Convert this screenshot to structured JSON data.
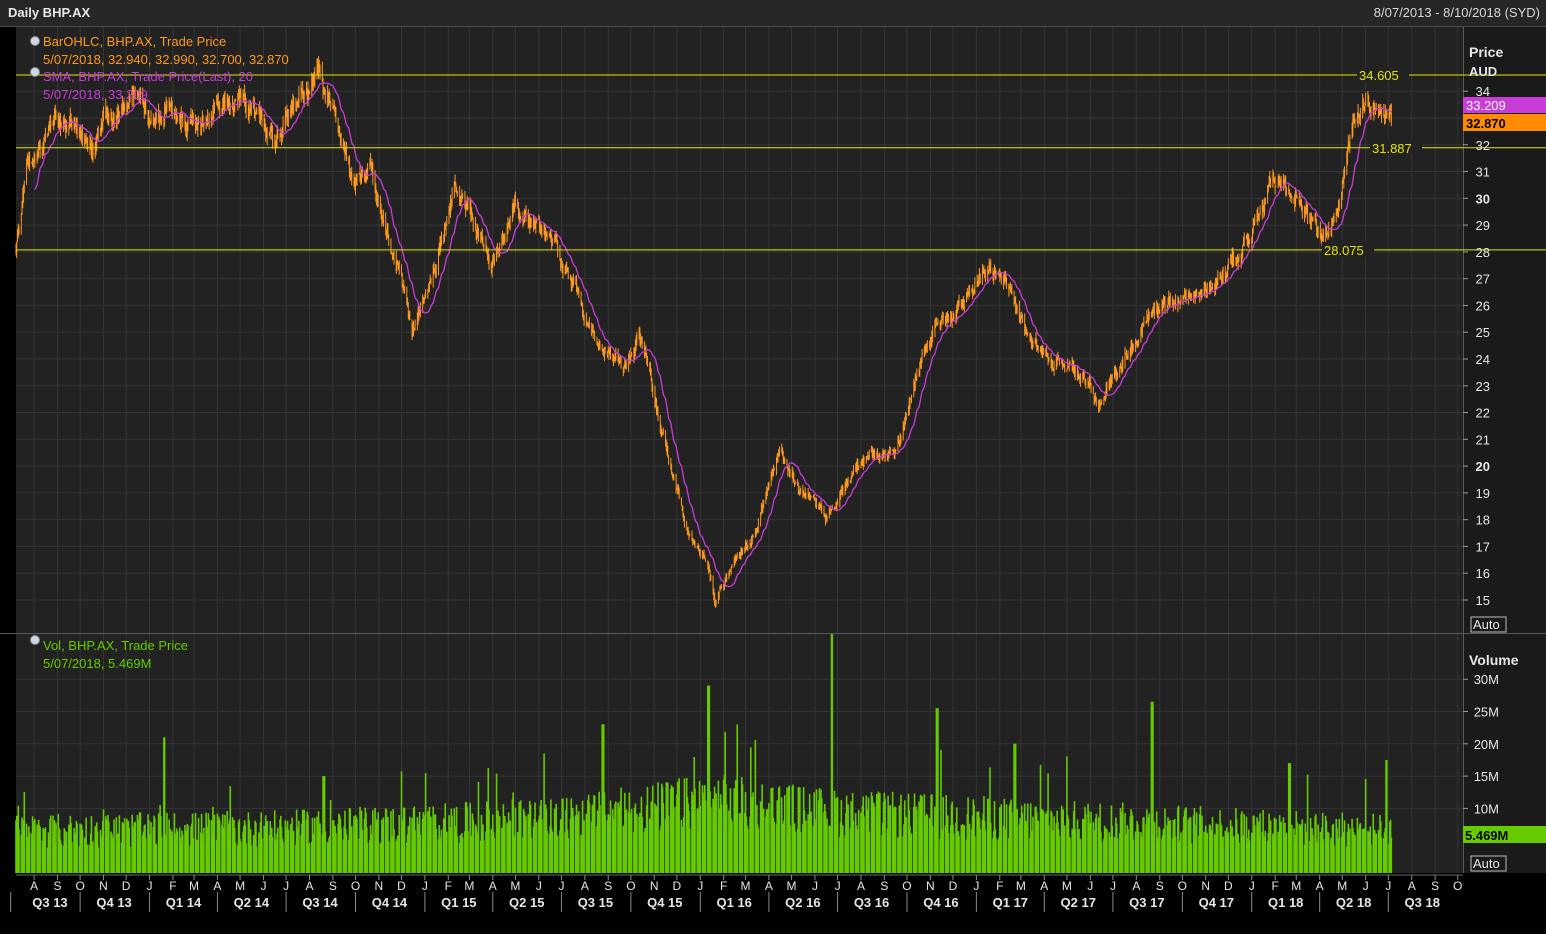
{
  "header": {
    "title": "Daily BHP.AX",
    "date_range": "8/07/2013 - 8/10/2018 (SYD)"
  },
  "colors": {
    "background": "#222222",
    "grid": "#3a3a3a",
    "price_bars": "#ff9a1f",
    "sma": "#c83cd8",
    "volume": "#66cc00",
    "reference_lines": "#e6e600"
  },
  "price_panel": {
    "axis_title": "Price",
    "axis_unit": "AUD",
    "ticks": [
      "15",
      "16",
      "17",
      "18",
      "19",
      "20",
      "21",
      "22",
      "23",
      "24",
      "25",
      "26",
      "27",
      "28",
      "29",
      "30",
      "31",
      "32",
      "33",
      "34"
    ],
    "auto_button": "Auto",
    "legend_ohlc_title": "BarOHLC, BHP.AX, Trade Price",
    "legend_ohlc_values": "5/07/2018, 32.940, 32.990, 32.700, 32.870",
    "legend_sma_title": "SMA, BHP.AX, Trade Price(Last),  20",
    "legend_sma_values": "5/07/2018, 33.209",
    "last_sma_badge": "33.209",
    "last_price_badge": "32.870",
    "hlines": [
      {
        "value": 34.605,
        "label": "34.605"
      },
      {
        "value": 31.887,
        "label": "31.887"
      },
      {
        "value": 28.075,
        "label": "28.075"
      }
    ]
  },
  "volume_panel": {
    "axis_title": "Volume",
    "ticks": [
      "10M",
      "15M",
      "20M",
      "25M",
      "30M"
    ],
    "auto_button": "Auto",
    "legend_title": "Vol, BHP.AX, Trade Price",
    "legend_values": "5/07/2018, 5.469M",
    "last_volume_badge": "5.469M"
  },
  "chart_data": {
    "type": "ohlc_bar_with_sma_and_volume",
    "symbol": "BHP.AX",
    "x_range": [
      "2013-07-08",
      "2018-10-08"
    ],
    "y_range": [
      14.3,
      35.5
    ],
    "y_scale": "linear",
    "volume_range": [
      0,
      37000000
    ],
    "sma_period": 20,
    "price_keypoints": [
      [
        "2013-07-08",
        28.0
      ],
      [
        "2013-07-22",
        30.8
      ],
      [
        "2013-08-20",
        32.5
      ],
      [
        "2013-09-20",
        32.8
      ],
      [
        "2013-10-20",
        31.8
      ],
      [
        "2013-11-05",
        33.3
      ],
      [
        "2013-12-10",
        33.8
      ],
      [
        "2014-01-05",
        33.0
      ],
      [
        "2014-02-10",
        33.5
      ],
      [
        "2014-03-05",
        32.5
      ],
      [
        "2014-04-10",
        33.7
      ],
      [
        "2014-05-15",
        33.6
      ],
      [
        "2014-06-15",
        32.3
      ],
      [
        "2014-07-10",
        33.5
      ],
      [
        "2014-08-12",
        34.7
      ],
      [
        "2014-09-10",
        32.5
      ],
      [
        "2014-09-30",
        30.6
      ],
      [
        "2014-10-20",
        31.2
      ],
      [
        "2014-11-20",
        28.0
      ],
      [
        "2014-12-15",
        25.0
      ],
      [
        "2015-01-05",
        26.5
      ],
      [
        "2015-02-10",
        30.5
      ],
      [
        "2015-03-05",
        29.0
      ],
      [
        "2015-03-30",
        27.5
      ],
      [
        "2015-04-30",
        30.0
      ],
      [
        "2015-05-25",
        29.0
      ],
      [
        "2015-06-20",
        28.5
      ],
      [
        "2015-07-20",
        26.5
      ],
      [
        "2015-08-25",
        24.5
      ],
      [
        "2015-09-20",
        23.5
      ],
      [
        "2015-10-12",
        25.0
      ],
      [
        "2015-11-15",
        21.0
      ],
      [
        "2015-12-15",
        17.5
      ],
      [
        "2016-01-10",
        16.5
      ],
      [
        "2016-01-21",
        14.8
      ],
      [
        "2016-02-15",
        16.5
      ],
      [
        "2016-03-15",
        17.5
      ],
      [
        "2016-04-15",
        20.5
      ],
      [
        "2016-05-15",
        18.8
      ],
      [
        "2016-06-15",
        18.2
      ],
      [
        "2016-07-15",
        19.5
      ],
      [
        "2016-08-15",
        20.5
      ],
      [
        "2016-09-15",
        20.2
      ],
      [
        "2016-10-15",
        23.5
      ],
      [
        "2016-11-10",
        25.5
      ],
      [
        "2016-12-15",
        26.2
      ],
      [
        "2017-01-12",
        27.5
      ],
      [
        "2017-02-15",
        26.5
      ],
      [
        "2017-03-15",
        24.5
      ],
      [
        "2017-04-15",
        24.0
      ],
      [
        "2017-05-15",
        23.5
      ],
      [
        "2017-06-12",
        22.3
      ],
      [
        "2017-07-15",
        24.0
      ],
      [
        "2017-08-15",
        25.5
      ],
      [
        "2017-09-15",
        26.5
      ],
      [
        "2017-10-15",
        26.0
      ],
      [
        "2017-11-15",
        27.0
      ],
      [
        "2017-12-15",
        28.0
      ],
      [
        "2018-01-10",
        29.5
      ],
      [
        "2018-01-30",
        31.0
      ],
      [
        "2018-02-20",
        30.5
      ],
      [
        "2018-03-15",
        29.5
      ],
      [
        "2018-04-03",
        28.3
      ],
      [
        "2018-04-25",
        29.5
      ],
      [
        "2018-05-15",
        33.0
      ],
      [
        "2018-05-28",
        34.0
      ],
      [
        "2018-06-15",
        33.0
      ],
      [
        "2018-07-05",
        32.87
      ]
    ],
    "volume_levels_millions": [
      [
        "2013-07-08",
        7
      ],
      [
        "2014-06-30",
        7.5
      ],
      [
        "2015-06-30",
        9
      ],
      [
        "2016-01-15",
        12
      ],
      [
        "2016-06-30",
        10
      ],
      [
        "2017-06-30",
        8.5
      ],
      [
        "2018-07-05",
        7
      ]
    ],
    "volume_spikes_millions": [
      [
        "2014-01-20",
        21
      ],
      [
        "2014-08-20",
        15
      ],
      [
        "2015-08-25",
        23
      ],
      [
        "2016-01-12",
        29
      ],
      [
        "2016-02-20",
        23
      ],
      [
        "2016-06-24",
        37
      ],
      [
        "2016-11-10",
        25.5
      ],
      [
        "2017-02-21",
        20
      ],
      [
        "2017-08-22",
        26.5
      ],
      [
        "2018-02-20",
        17
      ],
      [
        "2018-06-29",
        17.5
      ]
    ],
    "x_month_labels": [
      {
        "d": "2013-08-01",
        "t": "A"
      },
      {
        "d": "2013-09-01",
        "t": "S"
      },
      {
        "d": "2013-10-01",
        "t": "O"
      },
      {
        "d": "2013-11-01",
        "t": "N"
      },
      {
        "d": "2013-12-01",
        "t": "D"
      },
      {
        "d": "2014-01-01",
        "t": "J"
      },
      {
        "d": "2014-02-01",
        "t": "F"
      },
      {
        "d": "2014-03-01",
        "t": "M"
      },
      {
        "d": "2014-04-01",
        "t": "A"
      },
      {
        "d": "2014-05-01",
        "t": "M"
      },
      {
        "d": "2014-06-01",
        "t": "J"
      },
      {
        "d": "2014-07-01",
        "t": "J"
      },
      {
        "d": "2014-08-01",
        "t": "A"
      },
      {
        "d": "2014-09-01",
        "t": "S"
      },
      {
        "d": "2014-10-01",
        "t": "O"
      },
      {
        "d": "2014-11-01",
        "t": "N"
      },
      {
        "d": "2014-12-01",
        "t": "D"
      },
      {
        "d": "2015-01-01",
        "t": "J"
      },
      {
        "d": "2015-02-01",
        "t": "F"
      },
      {
        "d": "2015-03-01",
        "t": "M"
      },
      {
        "d": "2015-04-01",
        "t": "A"
      },
      {
        "d": "2015-05-01",
        "t": "M"
      },
      {
        "d": "2015-06-01",
        "t": "J"
      },
      {
        "d": "2015-07-01",
        "t": "J"
      },
      {
        "d": "2015-08-01",
        "t": "A"
      },
      {
        "d": "2015-09-01",
        "t": "S"
      },
      {
        "d": "2015-10-01",
        "t": "O"
      },
      {
        "d": "2015-11-01",
        "t": "N"
      },
      {
        "d": "2015-12-01",
        "t": "D"
      },
      {
        "d": "2016-01-01",
        "t": "J"
      },
      {
        "d": "2016-02-01",
        "t": "F"
      },
      {
        "d": "2016-03-01",
        "t": "M"
      },
      {
        "d": "2016-04-01",
        "t": "A"
      },
      {
        "d": "2016-05-01",
        "t": "M"
      },
      {
        "d": "2016-06-01",
        "t": "J"
      },
      {
        "d": "2016-07-01",
        "t": "J"
      },
      {
        "d": "2016-08-01",
        "t": "A"
      },
      {
        "d": "2016-09-01",
        "t": "S"
      },
      {
        "d": "2016-10-01",
        "t": "O"
      },
      {
        "d": "2016-11-01",
        "t": "N"
      },
      {
        "d": "2016-12-01",
        "t": "D"
      },
      {
        "d": "2017-01-01",
        "t": "J"
      },
      {
        "d": "2017-02-01",
        "t": "F"
      },
      {
        "d": "2017-03-01",
        "t": "M"
      },
      {
        "d": "2017-04-01",
        "t": "A"
      },
      {
        "d": "2017-05-01",
        "t": "M"
      },
      {
        "d": "2017-06-01",
        "t": "J"
      },
      {
        "d": "2017-07-01",
        "t": "J"
      },
      {
        "d": "2017-08-01",
        "t": "A"
      },
      {
        "d": "2017-09-01",
        "t": "S"
      },
      {
        "d": "2017-10-01",
        "t": "O"
      },
      {
        "d": "2017-11-01",
        "t": "N"
      },
      {
        "d": "2017-12-01",
        "t": "D"
      },
      {
        "d": "2018-01-01",
        "t": "J"
      },
      {
        "d": "2018-02-01",
        "t": "F"
      },
      {
        "d": "2018-03-01",
        "t": "M"
      },
      {
        "d": "2018-04-01",
        "t": "A"
      },
      {
        "d": "2018-05-01",
        "t": "M"
      },
      {
        "d": "2018-06-01",
        "t": "J"
      },
      {
        "d": "2018-07-01",
        "t": "J"
      },
      {
        "d": "2018-08-01",
        "t": "A"
      },
      {
        "d": "2018-09-01",
        "t": "S"
      },
      {
        "d": "2018-10-01",
        "t": "O"
      }
    ],
    "x_quarter_labels": [
      {
        "d": "2013-07-01",
        "t": "Q3 13"
      },
      {
        "d": "2013-10-01",
        "t": "Q4 13"
      },
      {
        "d": "2014-01-01",
        "t": "Q1 14"
      },
      {
        "d": "2014-04-01",
        "t": "Q2 14"
      },
      {
        "d": "2014-07-01",
        "t": "Q3 14"
      },
      {
        "d": "2014-10-01",
        "t": "Q4 14"
      },
      {
        "d": "2015-01-01",
        "t": "Q1 15"
      },
      {
        "d": "2015-04-01",
        "t": "Q2 15"
      },
      {
        "d": "2015-07-01",
        "t": "Q3 15"
      },
      {
        "d": "2015-10-01",
        "t": "Q4 15"
      },
      {
        "d": "2016-01-01",
        "t": "Q1 16"
      },
      {
        "d": "2016-04-01",
        "t": "Q2 16"
      },
      {
        "d": "2016-07-01",
        "t": "Q3 16"
      },
      {
        "d": "2016-10-01",
        "t": "Q4 16"
      },
      {
        "d": "2017-01-01",
        "t": "Q1 17"
      },
      {
        "d": "2017-04-01",
        "t": "Q2 17"
      },
      {
        "d": "2017-07-01",
        "t": "Q3 17"
      },
      {
        "d": "2017-10-01",
        "t": "Q4 17"
      },
      {
        "d": "2018-01-01",
        "t": "Q1 18"
      },
      {
        "d": "2018-04-01",
        "t": "Q2 18"
      },
      {
        "d": "2018-07-01",
        "t": "Q3 18"
      }
    ]
  }
}
